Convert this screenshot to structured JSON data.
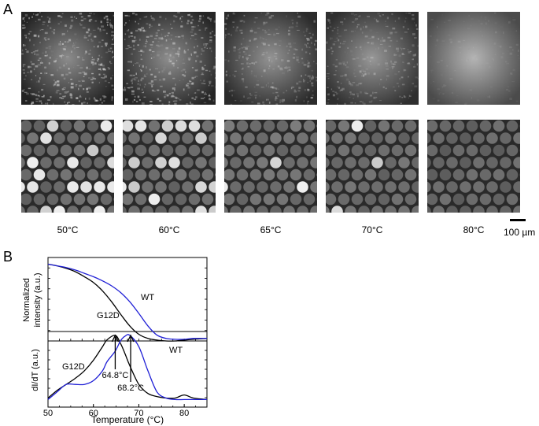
{
  "panel_a": {
    "label": "A",
    "temperatures": [
      "50°C",
      "60°C",
      "65°C",
      "70°C",
      "80°C"
    ],
    "scale_bar_label": "100 µm"
  },
  "panel_b": {
    "label": "B"
  },
  "chart_data": [
    {
      "type": "line",
      "title": "",
      "xlabel": "",
      "ylabel": "Normalized intensity (a.u.)",
      "xlim": [
        50,
        85
      ],
      "ylim": [
        0,
        1
      ],
      "x": [
        50,
        52,
        54,
        56,
        58,
        60,
        62,
        64,
        66,
        68,
        70,
        72,
        74,
        76,
        78,
        80,
        82,
        85
      ],
      "series": [
        {
          "name": "G12D",
          "color": "#000000",
          "values": [
            0.92,
            0.9,
            0.87,
            0.83,
            0.77,
            0.7,
            0.6,
            0.47,
            0.32,
            0.18,
            0.08,
            0.03,
            0.01,
            0.0,
            0.0,
            0.01,
            0.02,
            0.03
          ]
        },
        {
          "name": "WT",
          "color": "#1f1fd6",
          "values": [
            0.92,
            0.9,
            0.88,
            0.85,
            0.81,
            0.77,
            0.72,
            0.66,
            0.58,
            0.47,
            0.33,
            0.18,
            0.07,
            0.03,
            0.02,
            0.02,
            0.03,
            0.03
          ]
        }
      ]
    },
    {
      "type": "line",
      "title": "",
      "xlabel": "Temperature (°C)",
      "ylabel": "dI/dT (a.u.)",
      "xlim": [
        50,
        85
      ],
      "ylim": [
        0,
        1
      ],
      "xticks": [
        50,
        60,
        70,
        80
      ],
      "x": [
        50,
        52,
        54,
        56,
        58,
        60,
        62,
        63,
        64.8,
        66,
        67,
        68,
        70,
        72,
        74,
        76,
        78,
        80,
        82,
        85
      ],
      "series": [
        {
          "name": "G12D",
          "color": "#000000",
          "values": [
            0.12,
            0.22,
            0.3,
            0.38,
            0.48,
            0.62,
            0.8,
            0.89,
            0.95,
            0.84,
            0.7,
            0.55,
            0.3,
            0.18,
            0.14,
            0.12,
            0.12,
            0.16,
            0.12,
            0.1
          ]
        },
        {
          "name": "WT",
          "color": "#1f1fd6",
          "values": [
            0.1,
            0.2,
            0.3,
            0.3,
            0.3,
            0.35,
            0.48,
            0.6,
            0.74,
            0.88,
            0.94,
            0.95,
            0.8,
            0.48,
            0.2,
            0.12,
            0.1,
            0.1,
            0.1,
            0.1
          ]
        }
      ],
      "annotations": [
        {
          "text": "64.8°C",
          "x": 64.8
        },
        {
          "text": "68.2°C",
          "x": 68.2
        }
      ]
    }
  ]
}
